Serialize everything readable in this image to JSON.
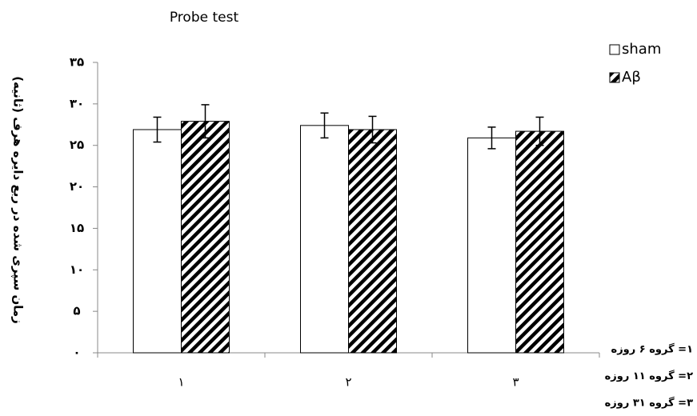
{
  "chart_data": {
    "type": "bar",
    "title": "Probe test",
    "y_label": "زمان سپری شده در ربع دایره هرف (ثانیه)",
    "categories": [
      "۱",
      "۲",
      "۳"
    ],
    "series": [
      {
        "name": "sham",
        "color": "#ffffff",
        "values": [
          26.9,
          27.4,
          25.9
        ],
        "errors": [
          1.5,
          1.5,
          1.3
        ]
      },
      {
        "name": "Aβ",
        "color": "#000000",
        "hatch": true,
        "values": [
          27.9,
          26.9,
          26.7
        ],
        "errors": [
          2.0,
          1.6,
          1.7
        ]
      }
    ],
    "ylim": [
      0,
      35
    ],
    "yticks": [
      {
        "value": 0,
        "label": "۰"
      },
      {
        "value": 5,
        "label": "۵"
      },
      {
        "value": 10,
        "label": "۱۰"
      },
      {
        "value": 15,
        "label": "۱۵"
      },
      {
        "value": 20,
        "label": "۲۰"
      },
      {
        "value": 25,
        "label": "۲۵"
      },
      {
        "value": 30,
        "label": "۳۰"
      },
      {
        "value": 35,
        "label": "۳۵"
      }
    ],
    "legend": "upper right",
    "notes": [
      "۱= گروه ۶ روزه",
      "۲= گروه ۱۱ روزه",
      "۳= گروه ۳۱ روزه"
    ]
  }
}
